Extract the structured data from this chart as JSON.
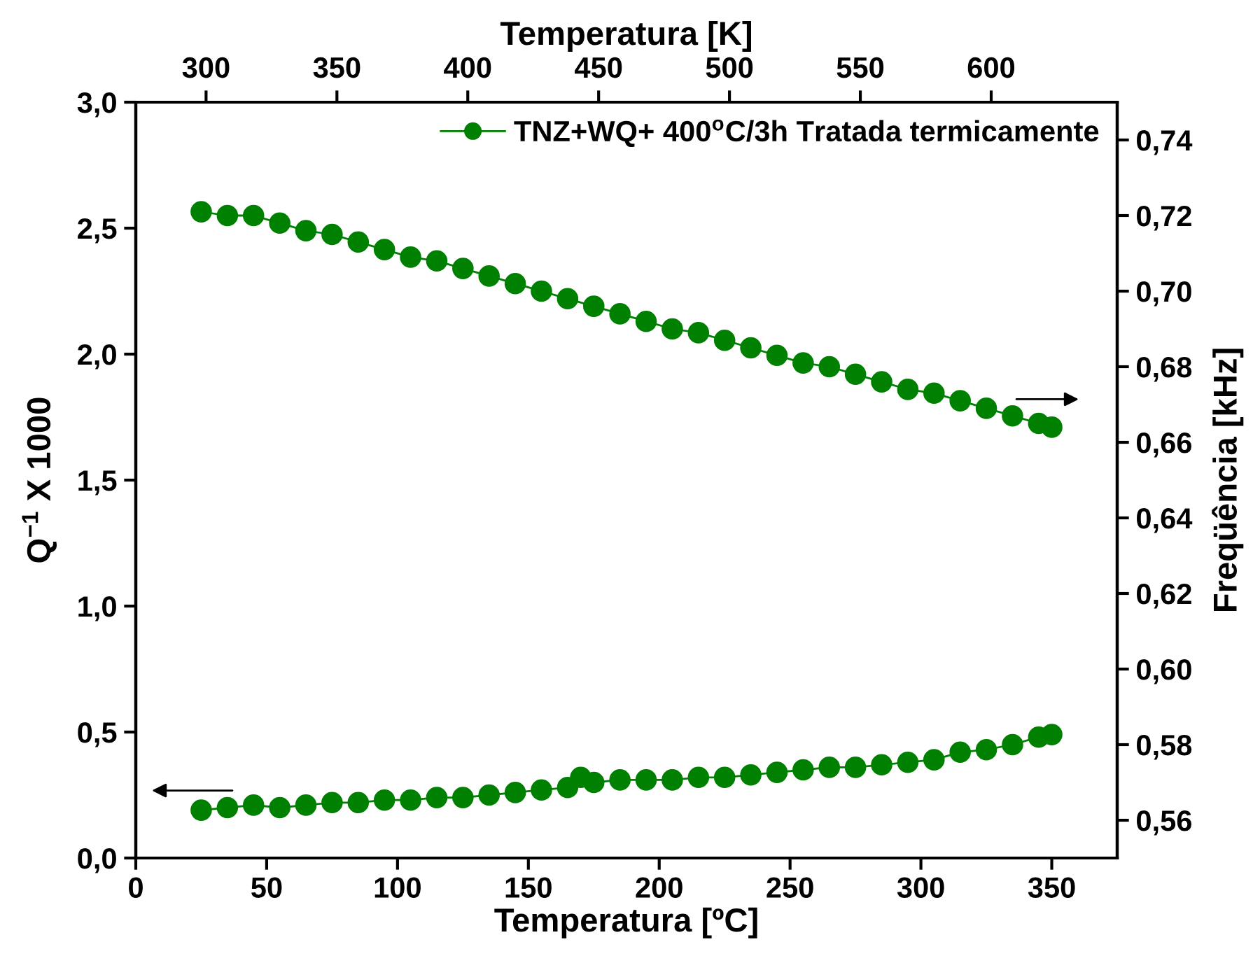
{
  "chart_data": {
    "type": "line",
    "xlabel": "Temperatura [ºC]",
    "ylabel": "Q$^{−1}$ X 1000",
    "y2label": "Freqüência [kHz]",
    "x2label": "Temperatura [K]",
    "xlim": [
      0,
      375
    ],
    "xticks": [
      0,
      50,
      100,
      150,
      200,
      250,
      300,
      350
    ],
    "ylim": [
      0,
      3
    ],
    "yticks": [
      {
        "value": 0,
        "label": "0,0"
      },
      {
        "value": 0.5,
        "label": "0,5"
      },
      {
        "value": 1,
        "label": "1,0"
      },
      {
        "value": 1.5,
        "label": "1,5"
      },
      {
        "value": 2,
        "label": "2,0"
      },
      {
        "value": 2.5,
        "label": "2,5"
      },
      {
        "value": 3,
        "label": "3,0"
      }
    ],
    "y2lim": [
      0.55,
      0.75
    ],
    "y2ticks": [
      {
        "value": 0.56,
        "label": "0,56"
      },
      {
        "value": 0.58,
        "label": "0,58"
      },
      {
        "value": 0.6,
        "label": "0,60"
      },
      {
        "value": 0.62,
        "label": "0,62"
      },
      {
        "value": 0.64,
        "label": "0,64"
      },
      {
        "value": 0.66,
        "label": "0,66"
      },
      {
        "value": 0.68,
        "label": "0,68"
      },
      {
        "value": 0.7,
        "label": "0,70"
      },
      {
        "value": 0.72,
        "label": "0,72"
      },
      {
        "value": 0.74,
        "label": "0,74"
      }
    ],
    "x2lim": [
      273.15,
      648.15
    ],
    "x2ticks": [
      300,
      350,
      400,
      450,
      500,
      550,
      600
    ],
    "marker": "circle",
    "legend": "top right",
    "grid": false,
    "series": [
      {
        "name": "TNZ+WQ+ 400$^{o}$C/3h Tratada termicamente",
        "color": "#008000",
        "x": [
          25,
          35,
          45,
          55,
          65,
          75,
          85,
          95,
          105,
          115,
          125,
          135,
          145,
          155,
          165,
          170,
          175,
          185,
          195,
          205,
          215,
          225,
          235,
          245,
          255,
          265,
          275,
          285,
          295,
          305,
          315,
          325,
          335,
          345,
          350
        ],
        "values": [
          0.19,
          0.2,
          0.21,
          0.2,
          0.21,
          0.22,
          0.22,
          0.23,
          0.23,
          0.24,
          0.24,
          0.25,
          0.26,
          0.27,
          0.28,
          0.32,
          0.3,
          0.31,
          0.31,
          0.31,
          0.32,
          0.32,
          0.33,
          0.34,
          0.35,
          0.36,
          0.36,
          0.37,
          0.38,
          0.39,
          0.42,
          0.43,
          0.45,
          0.48,
          0.49
        ]
      },
      {
        "color": "#008000",
        "axis": "y2",
        "x": [
          25,
          35,
          45,
          55,
          65,
          75,
          85,
          95,
          105,
          115,
          125,
          135,
          145,
          155,
          165,
          175,
          185,
          195,
          205,
          215,
          225,
          235,
          245,
          255,
          265,
          275,
          285,
          295,
          305,
          315,
          325,
          335,
          345,
          350
        ],
        "values": [
          0.721,
          0.72,
          0.72,
          0.718,
          0.716,
          0.715,
          0.713,
          0.711,
          0.709,
          0.708,
          0.706,
          0.704,
          0.702,
          0.7,
          0.698,
          0.696,
          0.694,
          0.692,
          0.69,
          0.689,
          0.687,
          0.685,
          0.683,
          0.681,
          0.68,
          0.678,
          0.676,
          0.674,
          0.673,
          0.671,
          0.669,
          0.667,
          0.665,
          0.664
        ]
      }
    ]
  }
}
